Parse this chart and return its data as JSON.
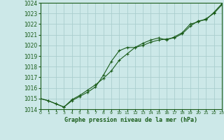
{
  "title": "Graphe pression niveau de la mer (hPa)",
  "background_color": "#cce8e8",
  "grid_color": "#aacece",
  "line_color": "#1a5c1a",
  "label_color": "#1a5c1a",
  "x_min": 0,
  "x_max": 23,
  "y_min": 1014,
  "y_max": 1024,
  "x_ticks": [
    0,
    1,
    2,
    3,
    4,
    5,
    6,
    7,
    8,
    9,
    10,
    11,
    12,
    13,
    14,
    15,
    16,
    17,
    18,
    19,
    20,
    21,
    22,
    23
  ],
  "y_ticks": [
    1014,
    1015,
    1016,
    1017,
    1018,
    1019,
    1020,
    1021,
    1022,
    1023,
    1024
  ],
  "line1_x": [
    0,
    1,
    2,
    3,
    4,
    5,
    6,
    7,
    8,
    9,
    10,
    11,
    12,
    13,
    14,
    15,
    16,
    17,
    18,
    19,
    20,
    21,
    22,
    23
  ],
  "line1_y": [
    1015.0,
    1014.8,
    1014.5,
    1014.2,
    1014.9,
    1015.3,
    1015.8,
    1016.3,
    1016.9,
    1017.6,
    1018.6,
    1019.2,
    1019.8,
    1020.0,
    1020.3,
    1020.5,
    1020.6,
    1020.7,
    1021.1,
    1021.8,
    1022.3,
    1022.4,
    1023.1,
    1023.9
  ],
  "line2_x": [
    0,
    1,
    2,
    3,
    4,
    5,
    6,
    7,
    8,
    9,
    10,
    11,
    12,
    13,
    14,
    15,
    16,
    17,
    18,
    19,
    20,
    21,
    22,
    23
  ],
  "line2_y": [
    1015.0,
    1014.8,
    1014.5,
    1014.2,
    1014.8,
    1015.2,
    1015.6,
    1016.1,
    1017.2,
    1018.5,
    1019.5,
    1019.8,
    1019.8,
    1020.2,
    1020.5,
    1020.7,
    1020.5,
    1020.8,
    1021.2,
    1022.0,
    1022.2,
    1022.5,
    1023.0,
    1023.8
  ]
}
